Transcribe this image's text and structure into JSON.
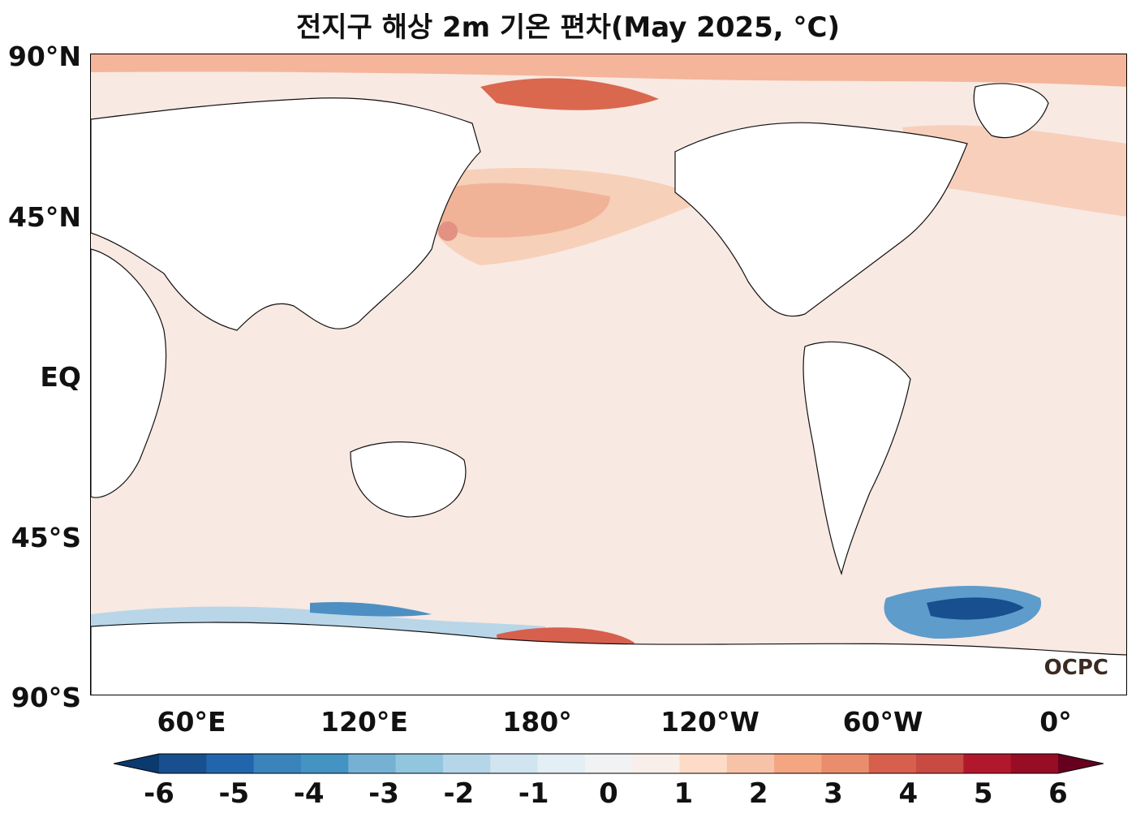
{
  "title": "전지구 해상 2m 기온 편차(May 2025, °C)",
  "logo_text": "OCPC",
  "lat_labels": [
    "90°N",
    "45°N",
    "EQ",
    "45°S",
    "90°S"
  ],
  "lon_labels": [
    "60°E",
    "120°E",
    "180°",
    "120°W",
    "60°W",
    "0°"
  ],
  "colorbar": {
    "ticks": [
      "-6",
      "-5",
      "-4",
      "-3",
      "-2",
      "-1",
      "0",
      "1",
      "2",
      "3",
      "4",
      "5",
      "6"
    ],
    "colors": [
      "#0b3a6f",
      "#174f8f",
      "#2166ac",
      "#3a84bb",
      "#4393c3",
      "#76b1d4",
      "#92c5de",
      "#b4d6e8",
      "#d1e5f0",
      "#e4eef5",
      "#f0f2f4",
      "#f9efea",
      "#fddbc7",
      "#f7c3a8",
      "#f4a582",
      "#ea8d6c",
      "#d6604d",
      "#c84a43",
      "#b2182b",
      "#970d25",
      "#67001f"
    ]
  }
}
